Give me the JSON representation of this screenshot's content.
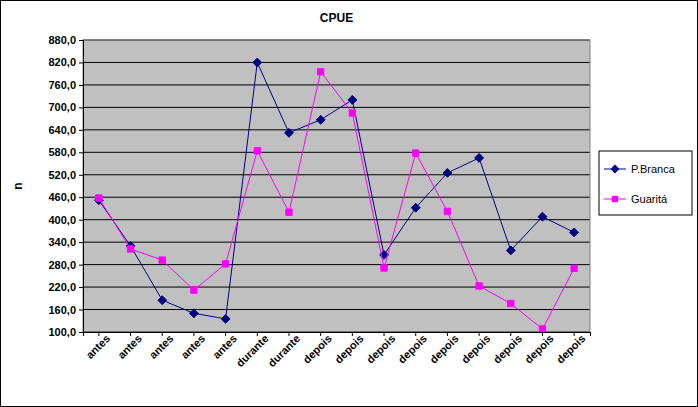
{
  "chart_data": {
    "type": "line",
    "title": "CPUE",
    "y_label": "n",
    "categories": [
      "antes",
      "antes",
      "antes",
      "antes",
      "antes",
      "durante",
      "durante",
      "depois",
      "depois",
      "depois",
      "depois",
      "depois",
      "depois",
      "depois",
      "depois",
      "depois"
    ],
    "series": [
      {
        "name": "P.Branca",
        "color": "#000080",
        "marker": "diamond",
        "values": [
          452,
          330,
          185,
          150,
          135,
          820,
          632,
          667,
          720,
          306,
          432,
          525,
          565,
          318,
          408,
          366
        ]
      },
      {
        "name": "Guaritá",
        "color": "#ff00ff",
        "marker": "square",
        "values": [
          458,
          322,
          292,
          212,
          282,
          584,
          420,
          795,
          685,
          271,
          578,
          422,
          223,
          176,
          108,
          270
        ]
      }
    ],
    "ylim": [
      100,
      880
    ],
    "yticks": [
      {
        "value": 100,
        "label": "100,0"
      },
      {
        "value": 160,
        "label": "160,0"
      },
      {
        "value": 220,
        "label": "220,0"
      },
      {
        "value": 280,
        "label": "280,0"
      },
      {
        "value": 340,
        "label": "340,0"
      },
      {
        "value": 400,
        "label": "400,0"
      },
      {
        "value": 460,
        "label": "460,0"
      },
      {
        "value": 520,
        "label": "520,0"
      },
      {
        "value": 580,
        "label": "580,0"
      },
      {
        "value": 640,
        "label": "640,0"
      },
      {
        "value": 700,
        "label": "700,0"
      },
      {
        "value": 760,
        "label": "760,0"
      },
      {
        "value": 820,
        "label": "820,0"
      },
      {
        "value": 880,
        "label": "880,0"
      }
    ],
    "grid": true,
    "legend": "right"
  }
}
